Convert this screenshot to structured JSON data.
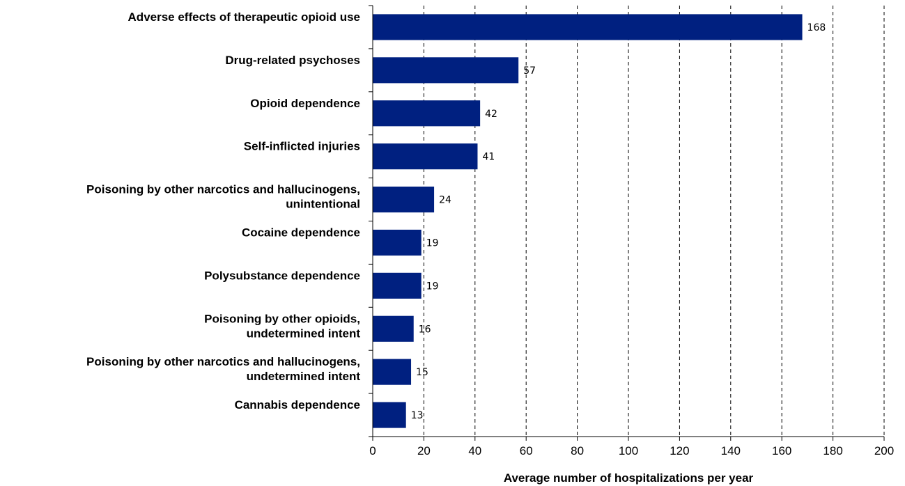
{
  "chart_data": {
    "type": "bar",
    "orientation": "horizontal",
    "categories": [
      [
        "Adverse effects of therapeutic opioid use"
      ],
      [
        "Drug-related psychoses"
      ],
      [
        "Opioid dependence"
      ],
      [
        "Self-inflicted injuries"
      ],
      [
        "Poisoning by other narcotics and hallucinogens,",
        "unintentional"
      ],
      [
        "Cocaine dependence"
      ],
      [
        "Polysubstance dependence"
      ],
      [
        "Poisoning by other opioids,",
        "undetermined intent"
      ],
      [
        "Poisoning by other narcotics and hallucinogens,",
        "undetermined intent"
      ],
      [
        "Cannabis dependence"
      ]
    ],
    "values": [
      168,
      57,
      42,
      41,
      24,
      19,
      19,
      16,
      15,
      13
    ],
    "value_labels": [
      "168",
      "57",
      "42",
      "41",
      "24",
      "19",
      "19",
      "16",
      "15",
      "13"
    ],
    "xlim": [
      0,
      200
    ],
    "xticks": [
      0,
      20,
      40,
      60,
      80,
      100,
      120,
      140,
      160,
      180,
      200
    ],
    "xlabel": "Average number of hospitalizations per year",
    "ylabel": "",
    "title": "",
    "grid": "vertical dashed",
    "bar_color": "#002080"
  }
}
